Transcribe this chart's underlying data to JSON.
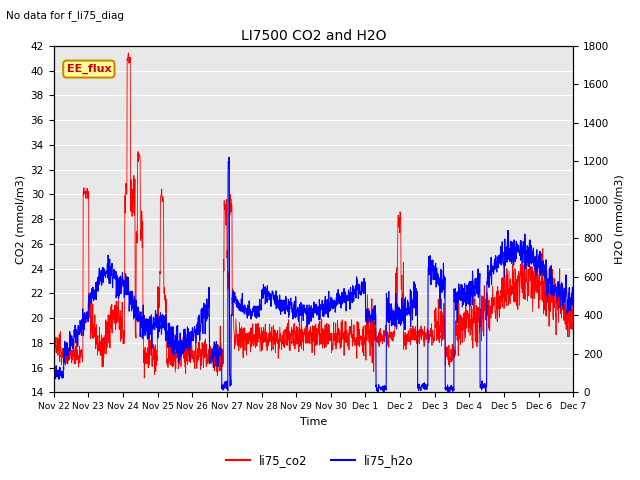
{
  "title": "LI7500 CO2 and H2O",
  "top_left_text": "No data for f_li75_diag",
  "legend_box_text": "EE_flux",
  "xlabel": "Time",
  "ylabel_left": "CO2 (mmol/m3)",
  "ylabel_right": "H2O (mmol/m3)",
  "ylim_left": [
    14,
    42
  ],
  "ylim_right": [
    0,
    1800
  ],
  "yticks_left": [
    14,
    16,
    18,
    20,
    22,
    24,
    26,
    28,
    30,
    32,
    34,
    36,
    38,
    40,
    42
  ],
  "yticks_right": [
    0,
    200,
    400,
    600,
    800,
    1000,
    1200,
    1400,
    1600,
    1800
  ],
  "xtick_labels": [
    "Nov 22",
    "Nov 23",
    "Nov 24",
    "Nov 25",
    "Nov 26",
    "Nov 27",
    "Nov 28",
    "Nov 29",
    "Nov 30",
    "Dec 1",
    "Dec 2",
    "Dec 3",
    "Dec 4",
    "Dec 5",
    "Dec 6",
    "Dec 7"
  ],
  "co2_color": "#ff0000",
  "h2o_color": "#0000ff",
  "background_color": "#ffffff",
  "plot_bg_color": "#e8e8e8",
  "grid_color": "#ffffff",
  "legend_box_facecolor": "#ffff99",
  "legend_box_edgecolor": "#cc8800",
  "legend_box_textcolor": "#cc0000"
}
